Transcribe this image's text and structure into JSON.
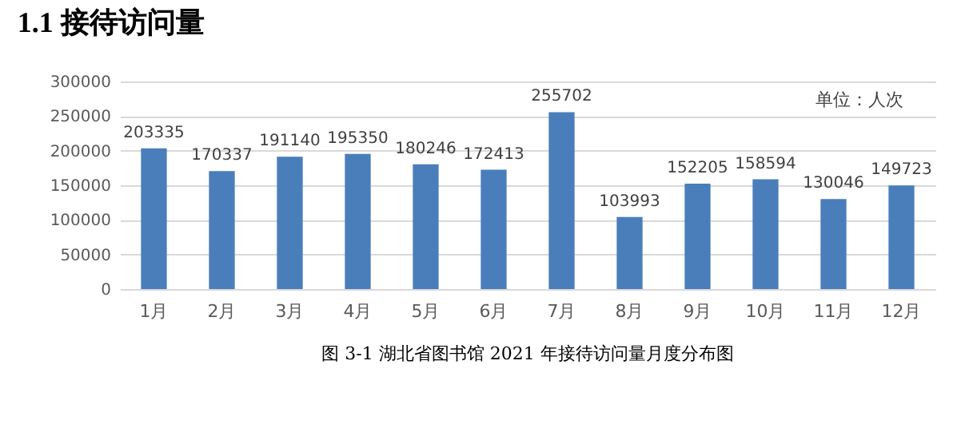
{
  "chart_data": {
    "type": "bar",
    "title": "1.1  接待访问量",
    "categories": [
      "1月",
      "2月",
      "3月",
      "4月",
      "5月",
      "6月",
      "7月",
      "8月",
      "9月",
      "10月",
      "11月",
      "12月"
    ],
    "values": [
      203335,
      170337,
      191140,
      195350,
      180246,
      172413,
      255702,
      103993,
      152205,
      158594,
      130046,
      149723
    ],
    "color": "#4a7ebb",
    "ylim": [
      0,
      300000
    ],
    "yticks": [
      0,
      50000,
      100000,
      150000,
      200000,
      250000,
      300000
    ],
    "grid": "y",
    "data_labels": true,
    "annotations": [
      "单位：人次",
      "图 3-1    湖北省图书馆 2021 年接待访问量月度分布图"
    ]
  }
}
